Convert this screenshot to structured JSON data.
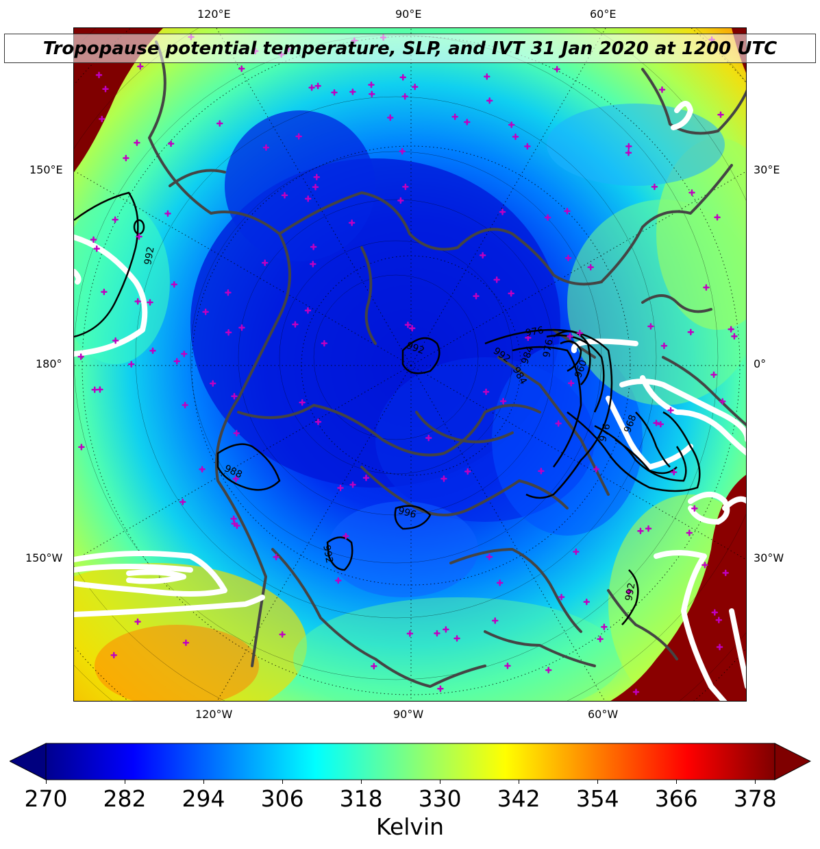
{
  "title": "Tropopause potential temperature, SLP, and IVT 31 Jan 2020 at 1200 UTC",
  "longitude_labels": {
    "top": [
      "120°E",
      "90°E",
      "60°E"
    ],
    "bottom": [
      "120°W",
      "90°W",
      "60°W"
    ],
    "left": [
      "150°E",
      "180°",
      "150°W"
    ],
    "right": [
      "30°E",
      "0°",
      "30°W"
    ]
  },
  "slp_contour_labels": [
    "992",
    "992",
    "992",
    "976",
    "984",
    "976",
    "984",
    "960",
    "976",
    "968",
    "988",
    "996",
    "992",
    "992"
  ],
  "colorbar": {
    "label": "Kelvin",
    "ticks": [
      "270",
      "282",
      "294",
      "306",
      "318",
      "330",
      "342",
      "354",
      "366",
      "378"
    ],
    "min": 270,
    "max": 381,
    "colormap": "jet",
    "extend": "both"
  },
  "colors": {
    "under": "#00007f",
    "over": "#7f0000",
    "continents": "#444444",
    "ivt_contour": "#ffffff",
    "station_marker": "#c000c0"
  }
}
